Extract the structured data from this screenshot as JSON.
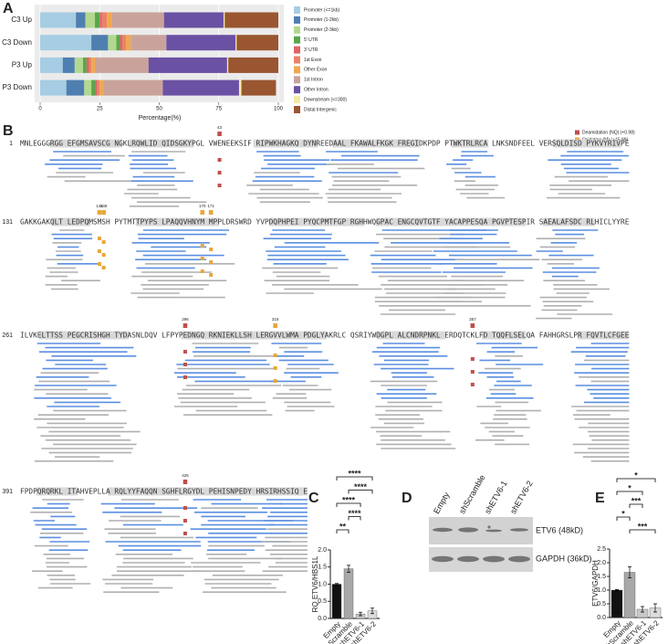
{
  "panel_labels": [
    "A",
    "B",
    "C",
    "D",
    "E"
  ],
  "chart_data": [
    {
      "type": "stacked_bar",
      "orientation": "horizontal",
      "categories": [
        "C3 Up",
        "C3 Down",
        "P3 Up",
        "P3 Down"
      ],
      "xlabel": "Percentage(%)",
      "xlim": [
        0,
        100
      ],
      "xticks": [
        0,
        25,
        50,
        75,
        100
      ],
      "grid": true,
      "legend": "right",
      "series": [
        {
          "name": "Promoter (<=1kb)",
          "color": "#a6cde3",
          "values": [
            15,
            21.5,
            9.5,
            11
          ]
        },
        {
          "name": "Promoter (1-2kb)",
          "color": "#4f7fb0",
          "values": [
            4,
            7,
            5,
            7.5
          ]
        },
        {
          "name": "Promoter (2-3kb)",
          "color": "#b2d88f",
          "values": [
            4,
            3.5,
            3.5,
            3
          ]
        },
        {
          "name": "5' UTR",
          "color": "#5aa64c",
          "values": [
            2,
            1.5,
            1.5,
            1.5
          ]
        },
        {
          "name": "3' UTR",
          "color": "#e06464",
          "values": [
            1,
            1,
            1,
            1
          ]
        },
        {
          "name": "1st Exon",
          "color": "#e8836a",
          "values": [
            2,
            1.5,
            1,
            1
          ]
        },
        {
          "name": "Other Exon",
          "color": "#f0a850",
          "values": [
            2,
            2,
            1.5,
            1.5
          ]
        },
        {
          "name": "1st Intron",
          "color": "#c9a39b",
          "values": [
            22,
            15,
            22.5,
            25
          ]
        },
        {
          "name": "Other Intron",
          "color": "#6a51a3",
          "values": [
            25,
            29,
            33,
            32
          ]
        },
        {
          "name": "Downstream (<=300)",
          "color": "#f3eaa6",
          "values": [
            0.5,
            0.5,
            0.5,
            1
          ]
        },
        {
          "name": "Distal Intergenic",
          "color": "#995631",
          "values": [
            22.5,
            17.5,
            21,
            14.5
          ]
        }
      ]
    },
    {
      "type": "bar",
      "ylabel": "RQ ETV6/HBS1L",
      "categories": [
        "Empty",
        "shScramble",
        "shETV6-1",
        "shETV6-2"
      ],
      "values": [
        1.0,
        1.45,
        0.13,
        0.22
      ],
      "errors": [
        0.02,
        0.1,
        0.05,
        0.08
      ],
      "colors": [
        "#111111",
        "#a8a8a8",
        "#c8c8c8",
        "#dcdcdc"
      ],
      "ylim": [
        0,
        2
      ],
      "yticks": [
        {
          "value": 0,
          "label": "0.0"
        },
        0.5,
        {
          "value": 1,
          "label": "1.0"
        },
        1.5,
        {
          "value": 2,
          "label": "2.0"
        }
      ],
      "annotations": [
        {
          "text": "****",
          "between": [
            "Empty",
            "shETV6-2"
          ]
        },
        {
          "text": "****",
          "between": [
            "shScramble",
            "shETV6-2"
          ]
        },
        {
          "text": "****",
          "between": [
            "Empty",
            "shETV6-1"
          ]
        },
        {
          "text": "****",
          "between": [
            "shScramble",
            "shETV6-1"
          ]
        },
        {
          "text": "**",
          "between": [
            "Empty",
            "shScramble"
          ]
        }
      ]
    },
    {
      "type": "bar",
      "ylabel": "ETV6/GAPDH",
      "categories": [
        "Empty",
        "shScramble",
        "shETV6-1",
        "shETV6-2"
      ],
      "values": [
        1.0,
        1.65,
        0.3,
        0.35
      ],
      "errors": [
        0.02,
        0.2,
        0.1,
        0.15
      ],
      "colors": [
        "#111111",
        "#a8a8a8",
        "#c8c8c8",
        "#dcdcdc"
      ],
      "ylim": [
        0,
        2.5
      ],
      "yticks": [
        {
          "value": 0,
          "label": "0.0"
        },
        0.5,
        {
          "value": 1,
          "label": "1.0"
        },
        1.5,
        {
          "value": 2,
          "label": "2.0"
        },
        2.5
      ],
      "annotations": [
        {
          "text": "*",
          "between": [
            "Empty",
            "shETV6-2"
          ]
        },
        {
          "text": "*",
          "between": [
            "Empty",
            "shETV6-1"
          ]
        },
        {
          "text": "***",
          "between": [
            "shScramble",
            "shETV6-1"
          ]
        },
        {
          "text": "*",
          "between": [
            "Empty",
            "shScramble"
          ]
        },
        {
          "text": "***",
          "between": [
            "shScramble",
            "shETV6-2"
          ]
        }
      ]
    }
  ],
  "coverage": {
    "legend": [
      {
        "label": "Deamidation (NQ) (+0.98)",
        "color": "#c0504d"
      },
      {
        "label": "Oxidation (M) (+15.99)",
        "color": "#e8a838"
      }
    ],
    "rows": [
      {
        "start": 1,
        "sequence": "MNLEGGGRGG EFGMSAVSCG NGKLRQWLID QIDSGKYPGL VWENEEKSIF RIPWKHAGKQ DYNREEDAAL FKAWALFKGK FREGIDKPDP PTWKTRLRCA LNKSNDFEEL VERSQLDISD PYKVYRIVPE",
        "sites": [
          {
            "position": 43,
            "color": "#c0504d"
          }
        ]
      },
      {
        "start": 131,
        "sequence": "GAKKGAKQLT LEDPQMSMSH PYTMTTPYPS LPAQQVHNYM MPPLDRSWRD YVPDQPHPEI PYQCPMTFGP RGHHWQGPAC ENGCQVTGTF YACAPPESQA PGVPTESPIR SAEALAFSDC RLHICLYYRE",
        "sites": [
          {
            "position": 148,
            "color": "#e8a838"
          },
          {
            "position": 149,
            "color": "#e8a838"
          },
          {
            "position": 170,
            "color": "#e8a838"
          },
          {
            "position": 171,
            "color": "#e8a838"
          }
        ]
      },
      {
        "start": 261,
        "sequence": "ILVKELTTSS PEGCRISHGH TYDASNLDQV LFPYPEDNGQ RKNIEKLLSH LERGVVLWMA PDGLYAKRLC QSRIYWDGPL ALCNDRPNKL ERDQTCKLFD TQQFLSELQA FAHHGRSLPR FQVTLCFGEE",
        "sites": [
          {
            "position": 296,
            "color": "#c0504d"
          },
          {
            "position": 315,
            "color": "#e8a838"
          },
          {
            "position": 357,
            "color": "#c0504d"
          }
        ]
      },
      {
        "start": 391,
        "sequence": "FPDPQRQRKL ITAHVEPLLA RQLYYFAQQN SGHFLRGYDL PEHISNPEDY HRSIRHSSIQ E",
        "sites": [
          {
            "position": 426,
            "color": "#c0504d"
          }
        ]
      }
    ]
  },
  "blot": {
    "lanes": [
      "Empty",
      "shScramble",
      "shETV6-1",
      "shETV6-2"
    ],
    "bands": [
      "ETV6 (48kD)",
      "GAPDH (36kD)"
    ]
  }
}
